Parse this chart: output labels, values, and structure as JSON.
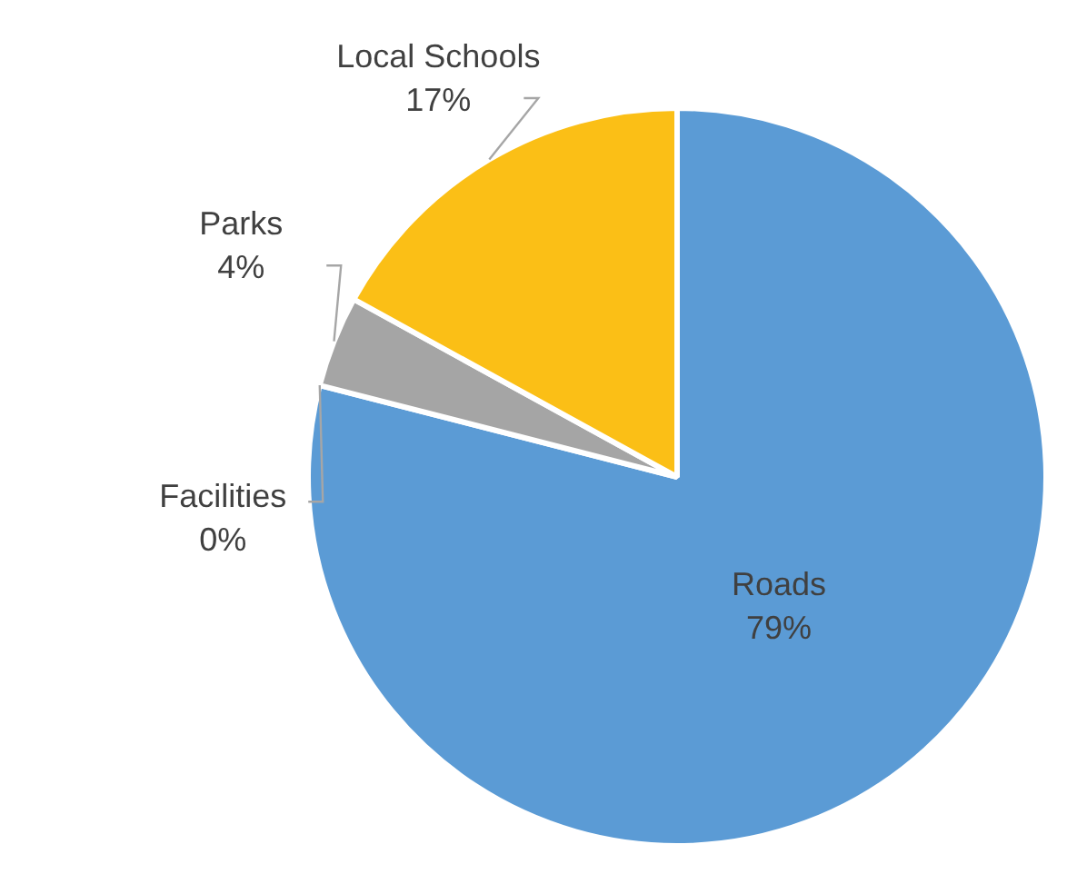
{
  "chart_data": {
    "type": "pie",
    "categories": [
      "Roads",
      "Facilities",
      "Parks",
      "Local Schools"
    ],
    "values": [
      79,
      0,
      4,
      17
    ],
    "value_labels": [
      "79%",
      "0%",
      "4%",
      "17%"
    ],
    "colors": [
      "#5b9bd5",
      "#ed7d31",
      "#a5a5a5",
      "#fbbf16"
    ]
  }
}
